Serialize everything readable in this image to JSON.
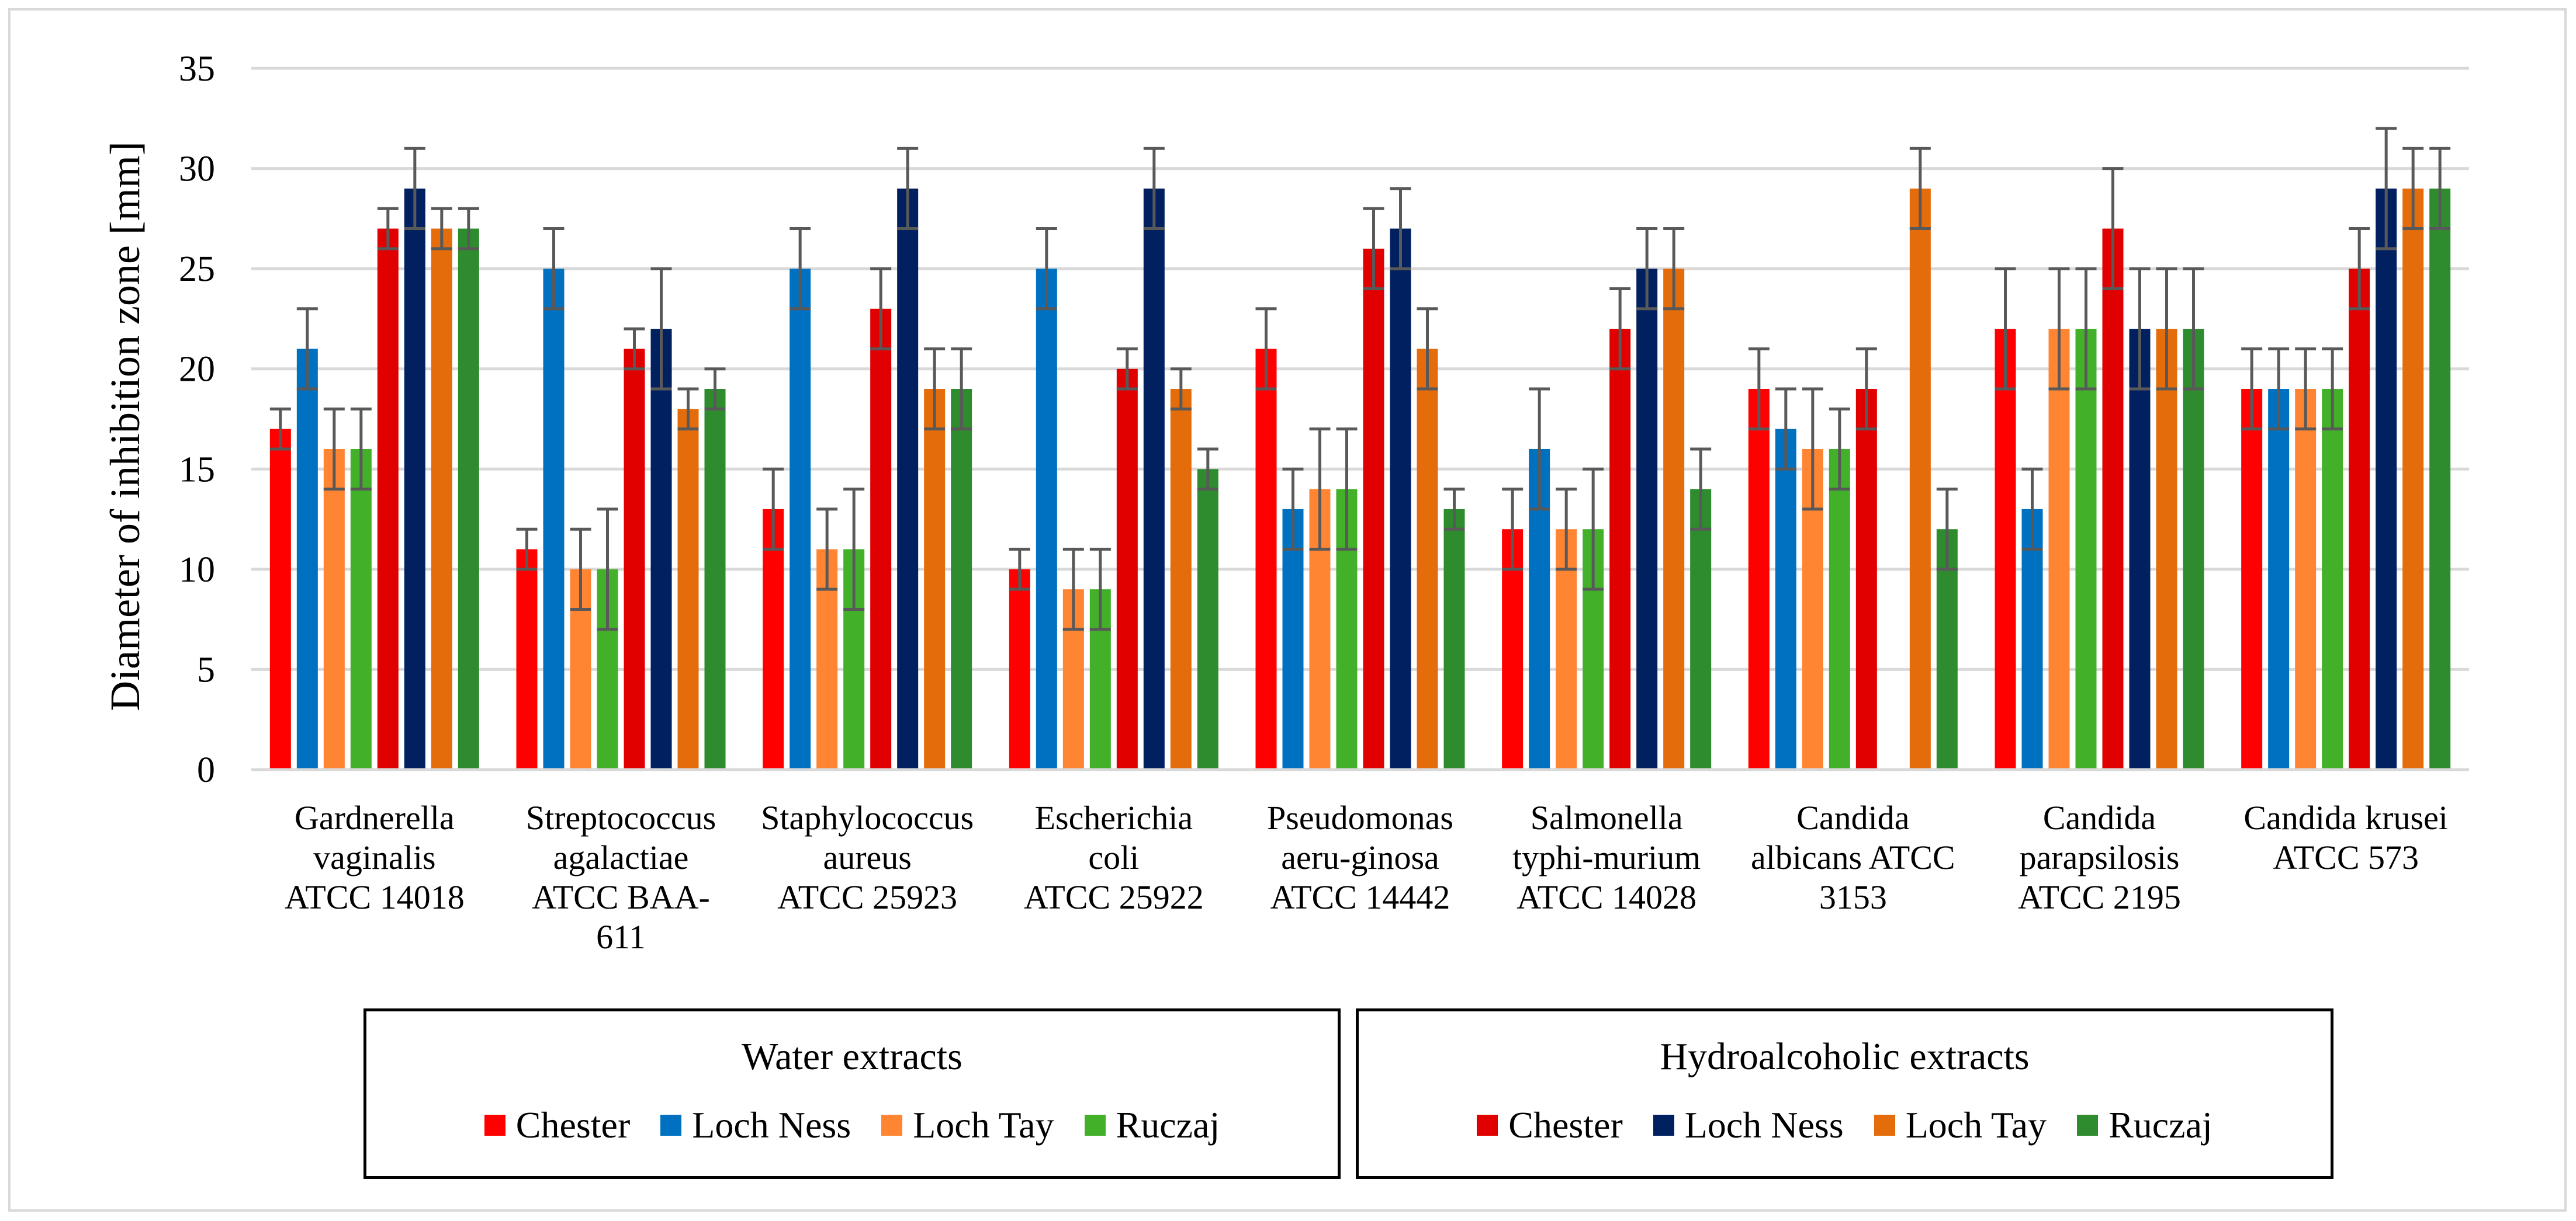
{
  "chart_data": {
    "type": "bar",
    "title": "",
    "xlabel": "",
    "ylabel": "Diameter of inhibition zone [mm]",
    "ylim": [
      0,
      35
    ],
    "yticks": [
      0,
      5,
      10,
      15,
      20,
      25,
      30,
      35
    ],
    "grid": true,
    "categories": [
      [
        "Gardnerella",
        "vaginalis",
        "ATCC 14018"
      ],
      [
        "Streptococcus",
        "agalactiae",
        "ATCC BAA-",
        "611"
      ],
      [
        "Staphylococcus",
        "aureus",
        "ATCC 25923"
      ],
      [
        "Escherichia",
        "coli",
        "ATCC 25922"
      ],
      [
        "Pseudomonas",
        "aeru-ginosa",
        "ATCC 14442"
      ],
      [
        "Salmonella",
        "typhi-murium",
        "ATCC 14028"
      ],
      [
        "Candida",
        "albicans ATCC",
        "3153"
      ],
      [
        "Candida",
        "parapsilosis",
        "ATCC 2195"
      ],
      [
        "Candida krusei",
        "ATCC 573"
      ]
    ],
    "series": [
      {
        "group": "Water extracts",
        "name": "Chester",
        "color": "#ff0000",
        "values": [
          17,
          11,
          13,
          10,
          21,
          12,
          19,
          22,
          19
        ],
        "errors": [
          1,
          1,
          2,
          1,
          2,
          2,
          2,
          3,
          2
        ]
      },
      {
        "group": "Water extracts",
        "name": "Loch Ness",
        "color": "#0070c0",
        "values": [
          21,
          25,
          25,
          25,
          13,
          16,
          17,
          13,
          19
        ],
        "errors": [
          2,
          2,
          2,
          2,
          2,
          3,
          2,
          2,
          2
        ]
      },
      {
        "group": "Water extracts",
        "name": "Loch Tay",
        "color": "#ff8533",
        "values": [
          16,
          10,
          11,
          9,
          14,
          12,
          16,
          22,
          19
        ],
        "errors": [
          2,
          2,
          2,
          2,
          3,
          2,
          3,
          3,
          2
        ]
      },
      {
        "group": "Water extracts",
        "name": "Ruczaj",
        "color": "#43b02a",
        "values": [
          16,
          10,
          11,
          9,
          14,
          12,
          16,
          22,
          19
        ],
        "errors": [
          2,
          3,
          3,
          2,
          3,
          3,
          2,
          3,
          2
        ]
      },
      {
        "group": "Hydroalcoholic extracts",
        "name": "Chester",
        "color": "#e00000",
        "values": [
          27,
          21,
          23,
          20,
          26,
          22,
          19,
          27,
          25
        ],
        "errors": [
          1,
          1,
          2,
          1,
          2,
          2,
          2,
          3,
          2
        ]
      },
      {
        "group": "Hydroalcoholic extracts",
        "name": "Loch Ness",
        "color": "#002060",
        "values": [
          29,
          22,
          29,
          29,
          27,
          25,
          null,
          22,
          29
        ],
        "errors": [
          2,
          3,
          2,
          2,
          2,
          2,
          0,
          3,
          3
        ]
      },
      {
        "group": "Hydroalcoholic extracts",
        "name": "Loch Tay",
        "color": "#e46c0a",
        "values": [
          27,
          18,
          19,
          19,
          21,
          25,
          29,
          22,
          29
        ],
        "errors": [
          1,
          1,
          2,
          1,
          2,
          2,
          2,
          3,
          2
        ]
      },
      {
        "group": "Hydroalcoholic extracts",
        "name": "Ruczaj",
        "color": "#2e8b2e",
        "values": [
          27,
          19,
          19,
          15,
          13,
          14,
          12,
          22,
          29
        ],
        "errors": [
          1,
          1,
          2,
          1,
          1,
          2,
          2,
          3,
          2
        ]
      }
    ],
    "error_bar_color": "#595959",
    "gridline_color": "#d9d9d9",
    "legend": {
      "placement": "bottom",
      "groups": [
        {
          "title": "Water extracts",
          "series_indices": [
            0,
            1,
            2,
            3
          ]
        },
        {
          "title": "Hydroalcoholic extracts",
          "series_indices": [
            4,
            5,
            6,
            7
          ]
        }
      ]
    }
  }
}
